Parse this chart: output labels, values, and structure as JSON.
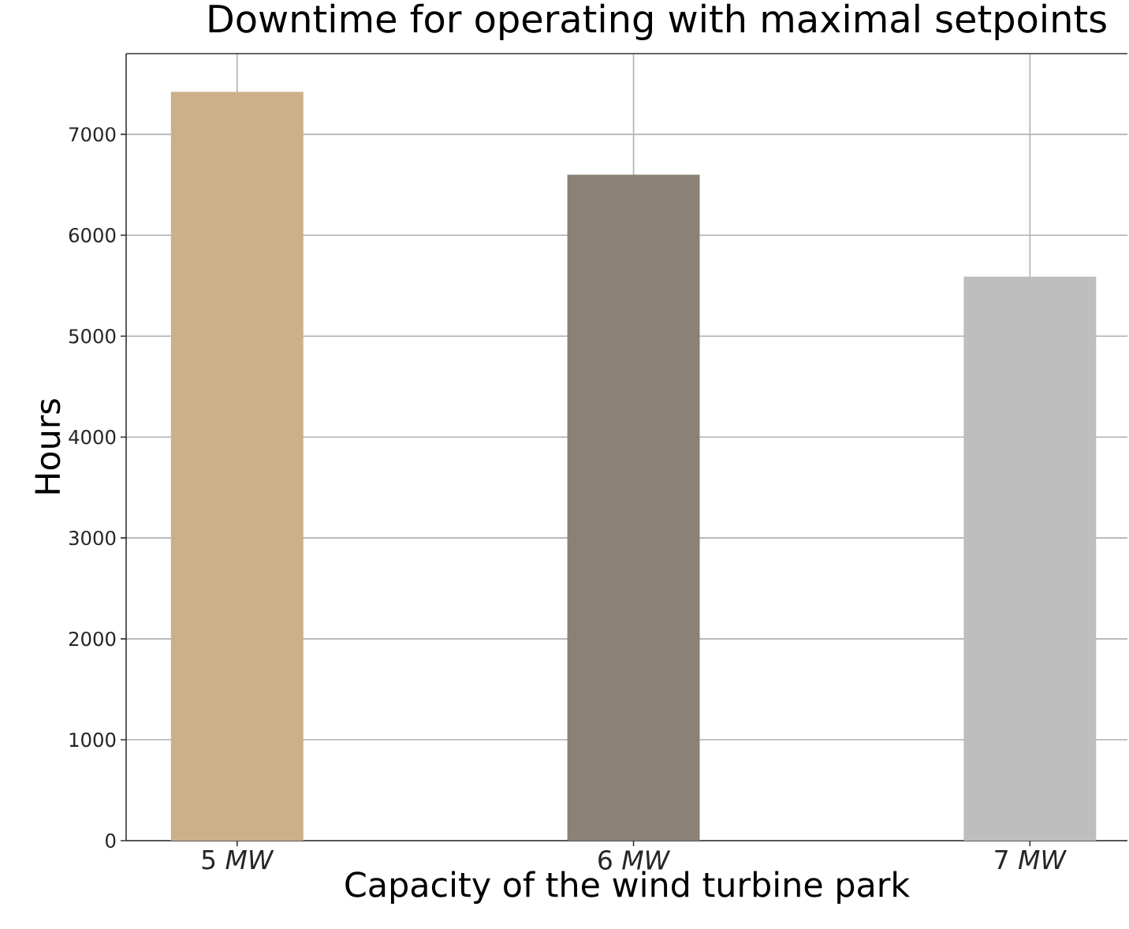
{
  "chart_data": {
    "type": "bar",
    "title": "Downtime for operating with maximal setpoints",
    "xlabel": "Capacity of the wind turbine park",
    "ylabel": "Hours",
    "categories": [
      "5 *MW*",
      "6 *MW*",
      "7 *MW*"
    ],
    "values": [
      7420,
      6600,
      5590
    ],
    "colors": [
      "#cbb08a",
      "#8b8176",
      "#bebebe"
    ],
    "ylim": [
      0,
      7800
    ],
    "yticks": [
      0,
      1000,
      2000,
      3000,
      4000,
      5000,
      6000,
      7000
    ],
    "grid": true
  }
}
